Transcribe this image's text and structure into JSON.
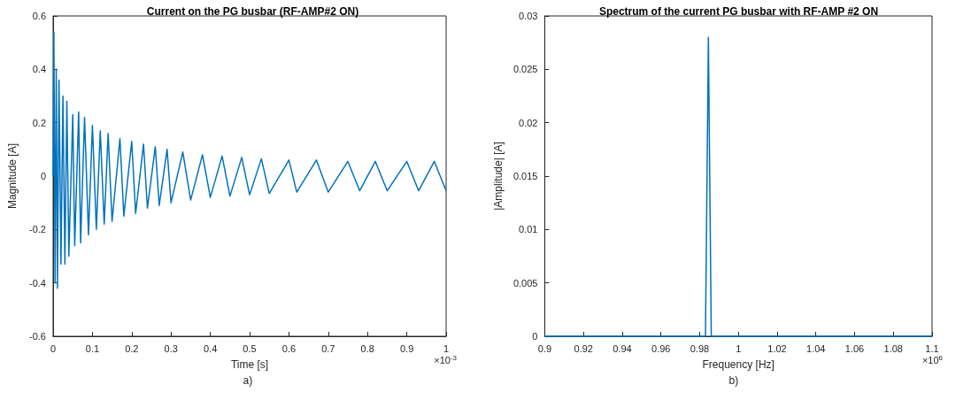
{
  "chart_data": [
    {
      "type": "line",
      "title": "Current on the PG busbar (RF-AMP#2 ON)",
      "xlabel": "Time [s]",
      "ylabel": "Magnitude [A]",
      "annotations": [
        "×10$^{-3}$",
        "a)"
      ],
      "x": [
        0,
        0.002,
        0.005,
        0.008,
        0.011,
        0.015,
        0.02,
        0.025,
        0.03,
        0.035,
        0.04,
        0.05,
        0.055,
        0.065,
        0.07,
        0.08,
        0.09,
        0.1,
        0.11,
        0.12,
        0.13,
        0.14,
        0.15,
        0.17,
        0.18,
        0.2,
        0.21,
        0.23,
        0.24,
        0.26,
        0.27,
        0.29,
        0.3,
        0.33,
        0.35,
        0.38,
        0.4,
        0.43,
        0.45,
        0.48,
        0.5,
        0.53,
        0.55,
        0.6,
        0.62,
        0.67,
        0.7,
        0.75,
        0.78,
        0.82,
        0.85,
        0.9,
        0.93,
        0.97,
        1
      ],
      "series": [
        {
          "color": "#0072bd",
          "values": [
            0,
            0.54,
            -0.4,
            0.4,
            -0.42,
            0.36,
            -0.33,
            0.3,
            -0.33,
            0.28,
            -0.3,
            0.23,
            -0.26,
            0.24,
            -0.25,
            0.22,
            -0.22,
            0.19,
            -0.2,
            0.17,
            -0.18,
            0.16,
            -0.17,
            0.14,
            -0.15,
            0.13,
            -0.14,
            0.12,
            -0.12,
            0.11,
            -0.11,
            0.1,
            -0.1,
            0.09,
            -0.09,
            0.08,
            -0.08,
            0.075,
            -0.075,
            0.07,
            -0.07,
            0.065,
            -0.065,
            0.06,
            -0.06,
            0.06,
            -0.06,
            0.055,
            -0.055,
            0.055,
            -0.055,
            0.055,
            -0.055,
            0.055,
            -0.055
          ]
        }
      ],
      "xlim": [
        0,
        1
      ],
      "xticks": [
        0,
        0.1,
        0.2,
        0.3,
        0.4,
        0.5,
        0.6,
        0.7,
        0.8,
        0.9,
        1
      ],
      "ylim": [
        -0.6,
        0.6
      ],
      "yticks": [
        -0.6,
        -0.4,
        -0.2,
        0,
        0.2,
        0.4,
        0.6
      ],
      "grid": false,
      "marker": "none",
      "line_style": "solid"
    },
    {
      "type": "line",
      "title": "Spectrum of the current PG busbar with RF-AMP #2 ON",
      "xlabel": "Frequency [Hz]",
      "ylabel": "|Amplitude| [A]",
      "annotations": [
        "×10$^{6}$",
        "b)"
      ],
      "x": [
        0.9,
        0.983,
        0.9845,
        0.986,
        1.1
      ],
      "series": [
        {
          "color": "#0072bd",
          "values": [
            0,
            0,
            0.028,
            0,
            0
          ]
        }
      ],
      "xlim": [
        0.9,
        1.1
      ],
      "xticks": [
        0.9,
        0.92,
        0.94,
        0.96,
        0.98,
        1,
        1.02,
        1.04,
        1.06,
        1.08,
        1.1
      ],
      "ylim": [
        0,
        0.03
      ],
      "yticks": [
        0,
        0.005,
        0.01,
        0.015,
        0.02,
        0.025,
        0.03
      ],
      "grid": false,
      "marker": "none",
      "line_style": "solid"
    }
  ]
}
